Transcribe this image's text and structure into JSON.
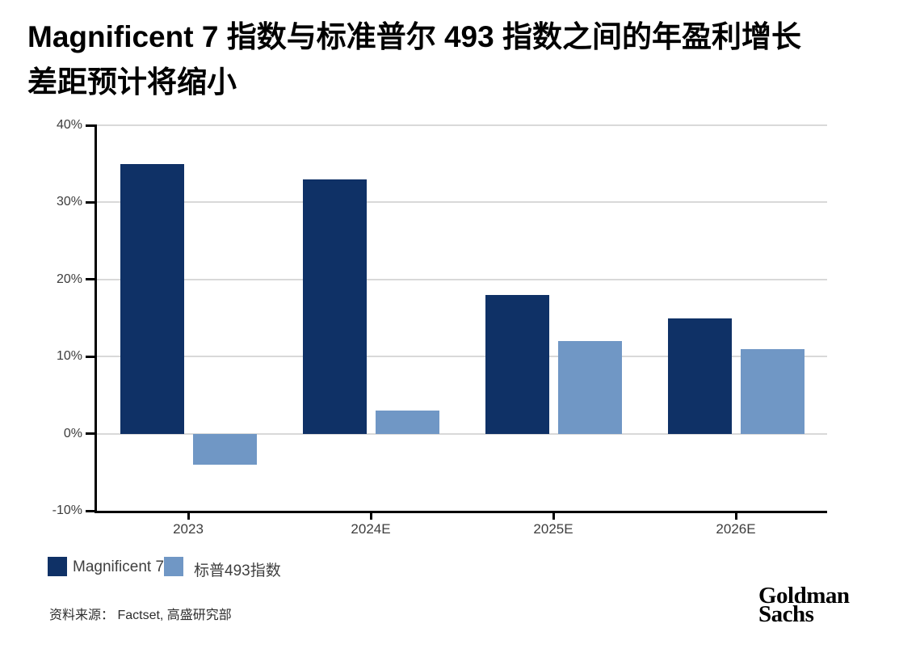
{
  "title": {
    "line1": "Magnificent 7 指数与标准普尔 493 指数之间的年盈利增长",
    "line2": "差距预计将缩小"
  },
  "legend": {
    "items": [
      {
        "label": "Magnificent 7",
        "color": "#0f3166"
      },
      {
        "label": "标普493指数",
        "color": "#7097c5"
      }
    ]
  },
  "source": "资料来源： Factset, 高盛研究部",
  "logo": {
    "line1": "Goldman",
    "line2": "Sachs"
  },
  "chart_data": {
    "type": "bar",
    "title": "Magnificent 7 指数与标准普尔 493 指数之间的年盈利增长差距预计将缩小",
    "categories": [
      "2023",
      "2024E",
      "2025E",
      "2026E"
    ],
    "series": [
      {
        "name": "Magnificent 7",
        "color": "#0f3166",
        "values": [
          35,
          33,
          18,
          15
        ]
      },
      {
        "name": "标普493指数",
        "color": "#7097c5",
        "values": [
          -4,
          3,
          12,
          11
        ]
      }
    ],
    "ylim": [
      -10,
      40
    ],
    "ytick_step": 10,
    "ytick_suffix": "%",
    "grid": "horizontal",
    "grid_color": "#d9d9d9",
    "legend_position": "bottom-left",
    "xlabel": "",
    "ylabel": ""
  }
}
